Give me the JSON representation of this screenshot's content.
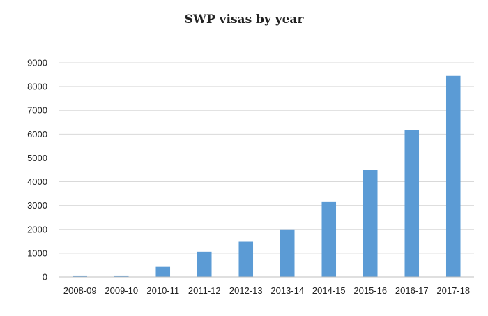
{
  "chart_data": {
    "type": "bar",
    "title": "SWP visas by year",
    "xlabel": "",
    "ylabel": "",
    "categories": [
      "2008-09",
      "2009-10",
      "2010-11",
      "2011-12",
      "2012-13",
      "2013-14",
      "2014-15",
      "2015-16",
      "2016-17",
      "2017-18"
    ],
    "values": [
      60,
      60,
      420,
      1060,
      1480,
      2000,
      3170,
      4500,
      6170,
      8450
    ],
    "ylim": [
      0,
      9000
    ],
    "yticks": [
      0,
      1000,
      2000,
      3000,
      4000,
      5000,
      6000,
      7000,
      8000,
      9000
    ],
    "grid": true,
    "legend": "none",
    "bar_color": "#5b9bd5",
    "grid_color": "#d9d9d9",
    "axis_color": "#bfbfbf"
  }
}
